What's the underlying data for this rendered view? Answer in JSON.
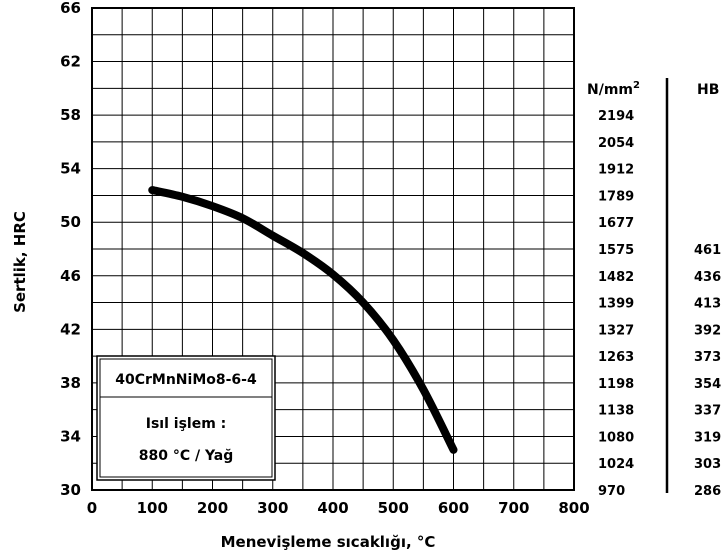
{
  "chart_data": {
    "type": "line",
    "xlabel": "Menevişleme sıcaklığı, °C",
    "ylabel": "Sertlik, HRC",
    "xlim": [
      0,
      800
    ],
    "ylim": [
      30,
      66
    ],
    "x_ticks": [
      0,
      100,
      200,
      300,
      400,
      500,
      600,
      700,
      800
    ],
    "y_ticks": [
      30,
      34,
      38,
      42,
      46,
      50,
      54,
      58,
      62,
      66
    ],
    "grid": true,
    "series": [
      {
        "x": [
          100,
          150,
          200,
          250,
          300,
          350,
          400,
          450,
          500,
          550,
          600
        ],
        "y": [
          52.4,
          51.9,
          51.2,
          50.3,
          49.0,
          47.7,
          46.1,
          44.0,
          41.2,
          37.5,
          33.0
        ]
      }
    ],
    "annotation": {
      "steel": "40CrMnNiMo8-6-4",
      "treatment_label": "Isıl işlem :",
      "treatment_value": "880 °C / Yağ"
    },
    "conversion_scale": {
      "tensile_header_base": "N/mm",
      "tensile_header_exp": "2",
      "hb_header": "HB",
      "rows": [
        {
          "hrc": 58,
          "tensile": "2194",
          "hb": ""
        },
        {
          "hrc": 56,
          "tensile": "2054",
          "hb": ""
        },
        {
          "hrc": 54,
          "tensile": "1912",
          "hb": ""
        },
        {
          "hrc": 52,
          "tensile": "1789",
          "hb": ""
        },
        {
          "hrc": 50,
          "tensile": "1677",
          "hb": ""
        },
        {
          "hrc": 48,
          "tensile": "1575",
          "hb": "461"
        },
        {
          "hrc": 46,
          "tensile": "1482",
          "hb": "436"
        },
        {
          "hrc": 44,
          "tensile": "1399",
          "hb": "413"
        },
        {
          "hrc": 42,
          "tensile": "1327",
          "hb": "392"
        },
        {
          "hrc": 40,
          "tensile": "1263",
          "hb": "373"
        },
        {
          "hrc": 38,
          "tensile": "1198",
          "hb": "354"
        },
        {
          "hrc": 36,
          "tensile": "1138",
          "hb": "337"
        },
        {
          "hrc": 34,
          "tensile": "1080",
          "hb": "319"
        },
        {
          "hrc": 32,
          "tensile": "1024",
          "hb": "303"
        },
        {
          "hrc": 30,
          "tensile": "970",
          "hb": "286"
        }
      ]
    }
  }
}
